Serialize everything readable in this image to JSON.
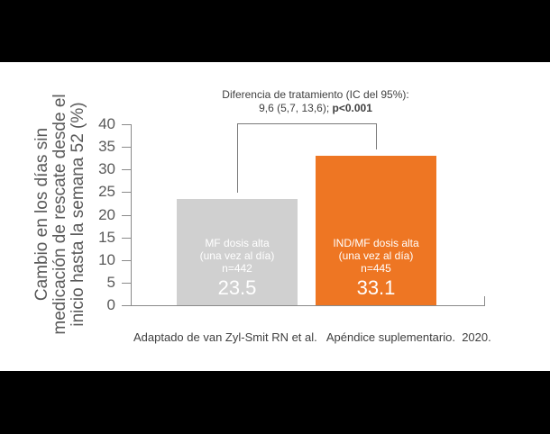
{
  "chart_data": {
    "type": "bar",
    "title": "",
    "annotation": {
      "line1": "Diferencia de tratamiento (IC del 95%):",
      "line2_prefix": "9,6  (5,7, 13,6); ",
      "line2_bold": "p<0.001"
    },
    "ylabel_lines": [
      "Cambio en los días sin",
      "medicación de rescate desde el",
      "inicio hasta la semana 52 (%)"
    ],
    "xlabel": "",
    "ylim": [
      0,
      40
    ],
    "yticks": [
      "0",
      "5",
      "10",
      "15",
      "20",
      "25",
      "30",
      "35",
      "40"
    ],
    "categories": [
      "MF dosis alta (una vez al día)",
      "IND/MF dosis alta (una vez al día)"
    ],
    "values": [
      23.5,
      33.1
    ],
    "bars": [
      {
        "line1": "MF dosis alta",
        "line2": "(una vez al día)",
        "n": "n=442",
        "value_label": "23.5",
        "value": 23.5,
        "color": "#D0D0D0"
      },
      {
        "line1": "IND/MF dosis alta",
        "line2": "(una vez al día)",
        "n": "n=445",
        "value_label": "33.1",
        "value": 33.1,
        "color": "#EE7623"
      }
    ],
    "grid": false,
    "legend": "none"
  },
  "caption": "Adaptado de van Zyl-Smit RN et al.   Apéndice suplementario.  2020."
}
